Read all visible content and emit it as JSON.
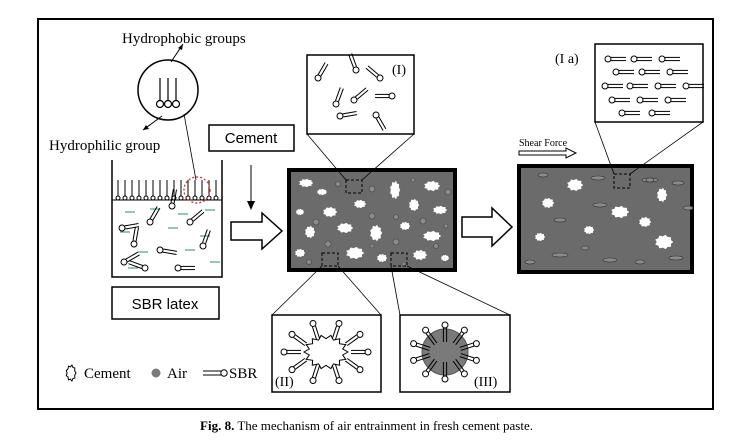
{
  "labels": {
    "hydrophobic": "Hydrophobic groups",
    "hydrophilic": "Hydrophilic group",
    "cement_box": "Cement",
    "sbr_latex": "SBR latex",
    "panel_1": "(I)",
    "panel_1a": "(I a)",
    "panel_2": "(II)",
    "panel_3": "(III)",
    "shear_force": "Shear Force"
  },
  "legend": {
    "cement": "Cement",
    "air": "Air",
    "sbr": "SBR"
  },
  "caption": {
    "label": "Fig. 8.",
    "text": " The mechanism of air entrainment in fresh cement paste."
  },
  "colors": {
    "paste": "#6b6b6b",
    "void": "#ffffff",
    "air_bubble": "#7a7a7a",
    "water_line": "#2e8b6f",
    "highlight_circle": "#d04040"
  }
}
